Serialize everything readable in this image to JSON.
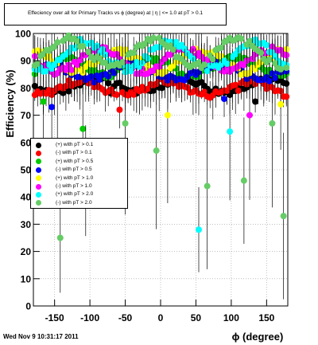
{
  "chart_data": {
    "type": "scatter",
    "title": "Effeciency over all for Primary Tracks vs ϕ (degree) at |  η | <= 1.0 at pT > 0.1",
    "xlabel": "ϕ (degree)",
    "ylabel": "Efficiency (%)",
    "xlim": [
      -180,
      180
    ],
    "ylim": [
      0,
      100
    ],
    "x_ticks": [
      -150,
      -100,
      -50,
      0,
      50,
      100,
      150
    ],
    "y_ticks": [
      0,
      10,
      20,
      30,
      40,
      50,
      60,
      70,
      80,
      90,
      100
    ],
    "grid": true,
    "legend_position": "left-middle",
    "series": [
      {
        "name": "(+) with pT > 0.1",
        "color": "#000000",
        "base": 81,
        "amp": 2.5,
        "dropouts": [
          [
            -147,
            60
          ],
          [
            -70,
            78
          ],
          [
            135,
            75
          ],
          [
            172,
            70
          ]
        ]
      },
      {
        "name": "(-) with pT > 0.1",
        "color": "#ff0000",
        "base": 80,
        "amp": 2.5,
        "dropouts": [
          [
            -132,
            66
          ],
          [
            -58,
            72
          ],
          [
            110,
            79
          ]
        ]
      },
      {
        "name": "(+) with pT > 0.5",
        "color": "#00cc00",
        "base": 88,
        "amp": 3,
        "dropouts": [
          [
            -165,
            75
          ],
          [
            -110,
            65
          ],
          [
            60,
            62
          ],
          [
            160,
            60
          ]
        ]
      },
      {
        "name": "(-) with pT > 0.5",
        "color": "#0000ff",
        "base": 86,
        "amp": 3,
        "dropouts": [
          [
            -155,
            73
          ],
          [
            -40,
            80
          ],
          [
            90,
            76
          ]
        ]
      },
      {
        "name": "(+) with pT > 1.0",
        "color": "#ffff00",
        "base": 90,
        "amp": 4,
        "dropouts": [
          [
            -140,
            72
          ],
          [
            10,
            70
          ],
          [
            170,
            74
          ]
        ]
      },
      {
        "name": "(-) with pT > 1.0",
        "color": "#ff00ff",
        "base": 90,
        "amp": 4,
        "dropouts": [
          [
            -120,
            68
          ],
          [
            -20,
            74
          ],
          [
            125,
            70
          ]
        ]
      },
      {
        "name": "(+) with pT > 2.0",
        "color": "#00ffff",
        "base": 92,
        "amp": 5,
        "dropouts": [
          [
            -172,
            25
          ],
          [
            -160,
            55
          ],
          [
            -32,
            67
          ],
          [
            55,
            28
          ],
          [
            97,
            64
          ],
          [
            160,
            57
          ]
        ]
      },
      {
        "name": "(-) with pT > 2.0",
        "color": "#66cc66",
        "base": 93,
        "amp": 5,
        "dropouts": [
          [
            -168,
            37
          ],
          [
            -143,
            25
          ],
          [
            -105,
            46
          ],
          [
            -50,
            67
          ],
          [
            -7,
            57
          ],
          [
            65,
            44
          ],
          [
            118,
            46
          ],
          [
            158,
            67
          ],
          [
            175,
            33
          ]
        ]
      }
    ]
  },
  "footer": {
    "timestamp": "Wed Nov  9 10:31:17 2011"
  }
}
